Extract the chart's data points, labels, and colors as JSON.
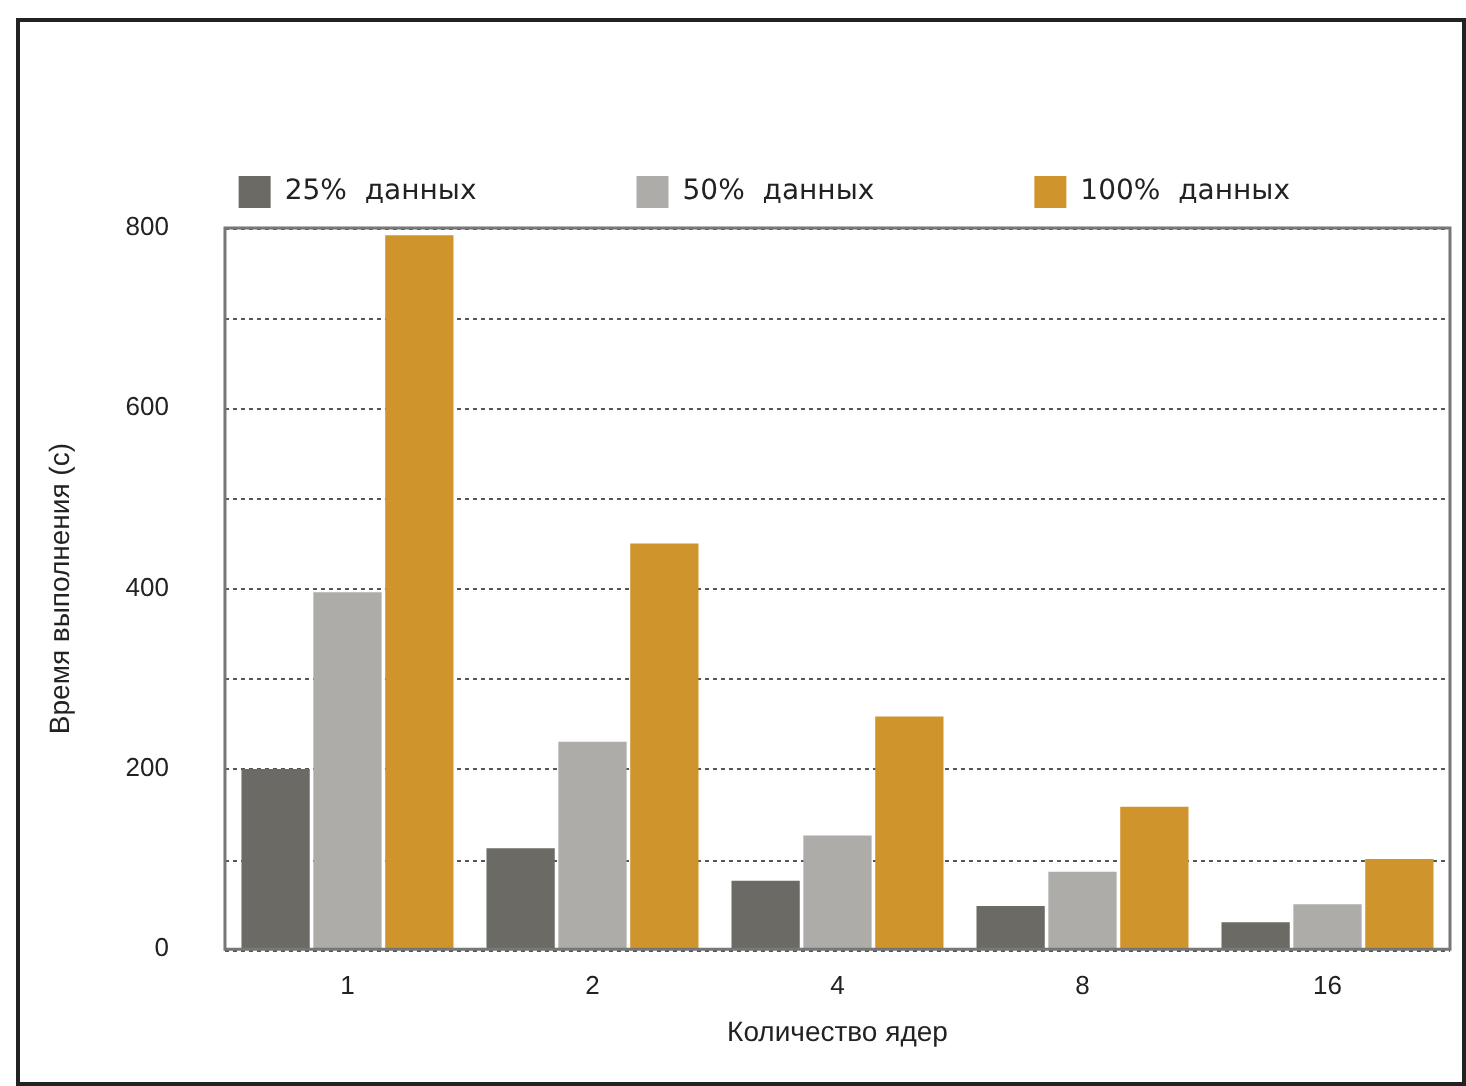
{
  "chart_data": {
    "type": "bar",
    "xlabel": "Количество ядер",
    "ylabel": "Время выполнения (с)",
    "categories": [
      "1",
      "2",
      "4",
      "8",
      "16"
    ],
    "series": [
      {
        "name": "25%  данных",
        "color": "#6b6a65",
        "values": [
          200,
          112,
          76,
          48,
          30
        ]
      },
      {
        "name": "50%  данных",
        "color": "#adaca8",
        "values": [
          396,
          230,
          126,
          86,
          50
        ]
      },
      {
        "name": "100%  данных",
        "color": "#d0942c",
        "values": [
          792,
          450,
          258,
          158,
          100
        ]
      }
    ],
    "ylim": [
      0,
      800
    ],
    "yticks": [
      0,
      {
        "value": 100,
        "label": null
      },
      200,
      {
        "value": 300,
        "label": null
      },
      400,
      {
        "value": 500,
        "label": null
      },
      600,
      {
        "value": 700,
        "label": null
      },
      800
    ],
    "grid": "y",
    "legend": "top"
  }
}
